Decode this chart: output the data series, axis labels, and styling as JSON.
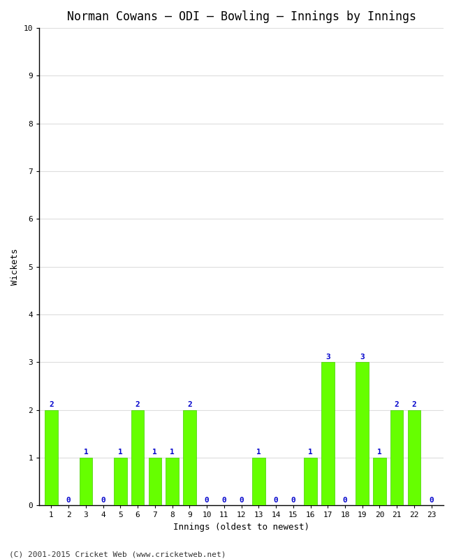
{
  "title": "Norman Cowans – ODI – Bowling – Innings by Innings",
  "xlabel": "Innings (oldest to newest)",
  "ylabel": "Wickets",
  "innings": [
    1,
    2,
    3,
    4,
    5,
    6,
    7,
    8,
    9,
    10,
    11,
    12,
    13,
    14,
    15,
    16,
    17,
    18,
    19,
    20,
    21,
    22,
    23
  ],
  "wickets": [
    2,
    0,
    1,
    0,
    1,
    2,
    1,
    1,
    2,
    0,
    0,
    0,
    1,
    0,
    0,
    1,
    3,
    0,
    3,
    1,
    2,
    2,
    0
  ],
  "bar_color": "#66ff00",
  "bar_edge_color": "#44cc00",
  "annotation_color": "#0000cc",
  "ylim": [
    0,
    10
  ],
  "yticks": [
    0,
    1,
    2,
    3,
    4,
    5,
    6,
    7,
    8,
    9,
    10
  ],
  "background_color": "#ffffff",
  "plot_bg_color": "#ffffff",
  "grid_color": "#dddddd",
  "title_fontsize": 12,
  "axis_label_fontsize": 9,
  "annotation_fontsize": 8,
  "tick_fontsize": 8,
  "footer": "(C) 2001-2015 Cricket Web (www.cricketweb.net)"
}
